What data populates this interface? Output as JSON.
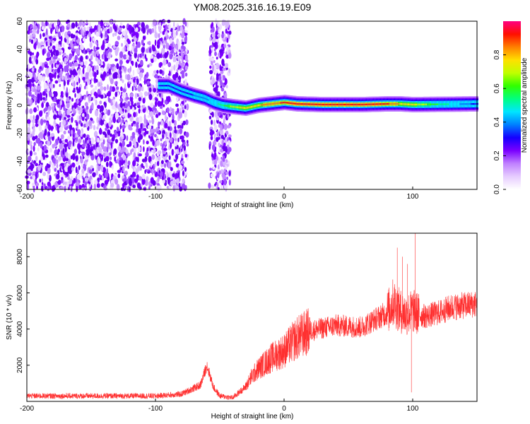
{
  "title": "YM08.2025.316.16.19.E09",
  "colorbar": {
    "label": "Normalized spectral amplitude",
    "ticks": [
      "0.0",
      "0.2",
      "0.4",
      "0.6",
      "0.8"
    ],
    "tick_values": [
      0.0,
      0.2,
      0.4,
      0.6,
      0.8
    ],
    "range": [
      0,
      1
    ],
    "colormap": [
      "#ffffff",
      "#e6ccff",
      "#c080ff",
      "#7a00ff",
      "#1400ff",
      "#0080ff",
      "#00e6ff",
      "#00ff80",
      "#30ff00",
      "#c0ff00",
      "#ffe000",
      "#ff8000",
      "#ff1000",
      "#ff0080"
    ]
  },
  "chart_data": [
    {
      "type": "heatmap",
      "title": "",
      "xlabel": "Height of straight line (km)",
      "ylabel": "Frequency (Hz)",
      "xlim": [
        -200,
        150
      ],
      "ylim": [
        -60,
        60
      ],
      "xticks": [
        "-200",
        "-100",
        "0",
        "100"
      ],
      "xtick_values": [
        -200,
        -100,
        0,
        100
      ],
      "yticks": [
        "-60",
        "-40",
        "-20",
        "0",
        "20",
        "40",
        "60"
      ],
      "ytick_values": [
        -60,
        -40,
        -20,
        0,
        20,
        40,
        60
      ],
      "noise_region_km": [
        -200,
        -75
      ],
      "noise_band_km": [
        -58,
        -42
      ],
      "ridge_x": [
        -98,
        -90,
        -80,
        -70,
        -62,
        -55,
        -48,
        -40,
        -30,
        -20,
        -10,
        0,
        10,
        30,
        60,
        80,
        90,
        100,
        150
      ],
      "ridge_y": [
        14,
        14,
        10,
        7,
        5,
        2,
        0,
        -1,
        -2,
        0,
        1,
        2,
        1,
        0.5,
        0.5,
        1,
        1,
        0.5,
        1
      ],
      "ridge_amplitude": [
        0.35,
        0.3,
        0.3,
        0.35,
        0.4,
        0.45,
        0.55,
        0.7,
        0.75,
        0.8,
        0.85,
        0.9,
        0.95,
        0.95,
        0.95,
        0.9,
        0.8,
        0.75,
        0.3
      ]
    },
    {
      "type": "line",
      "title": "",
      "xlabel": "Height of straight line (km)",
      "ylabel": "SNR (10 * v/v)",
      "xlim": [
        -200,
        150
      ],
      "ylim": [
        0,
        9300
      ],
      "xticks": [
        "-200",
        "-100",
        "0",
        "100"
      ],
      "xtick_values": [
        -200,
        -100,
        0,
        100
      ],
      "yticks": [
        "2000",
        "4000",
        "6000",
        "8000"
      ],
      "ytick_values": [
        2000,
        4000,
        6000,
        8000
      ],
      "series_color": "#ff3030",
      "x": [
        -200,
        -150,
        -100,
        -80,
        -65,
        -60,
        -55,
        -50,
        -40,
        -30,
        -25,
        -20,
        -10,
        0,
        10,
        20,
        40,
        60,
        70,
        80,
        85,
        90,
        95,
        100,
        105,
        110,
        120,
        130,
        150
      ],
      "y": [
        300,
        300,
        300,
        400,
        900,
        2000,
        800,
        300,
        200,
        800,
        1400,
        1800,
        2400,
        2800,
        3500,
        3900,
        4200,
        4100,
        4500,
        4900,
        5500,
        5000,
        4800,
        5000,
        4800,
        4700,
        4900,
        5200,
        5400
      ],
      "spikes": [
        {
          "x": 88,
          "y": 8500
        },
        {
          "x": 92,
          "y": 8000
        },
        {
          "x": 96,
          "y": 7600
        },
        {
          "x": 102,
          "y": 9300
        },
        {
          "x": 99,
          "y": 500
        }
      ]
    }
  ]
}
